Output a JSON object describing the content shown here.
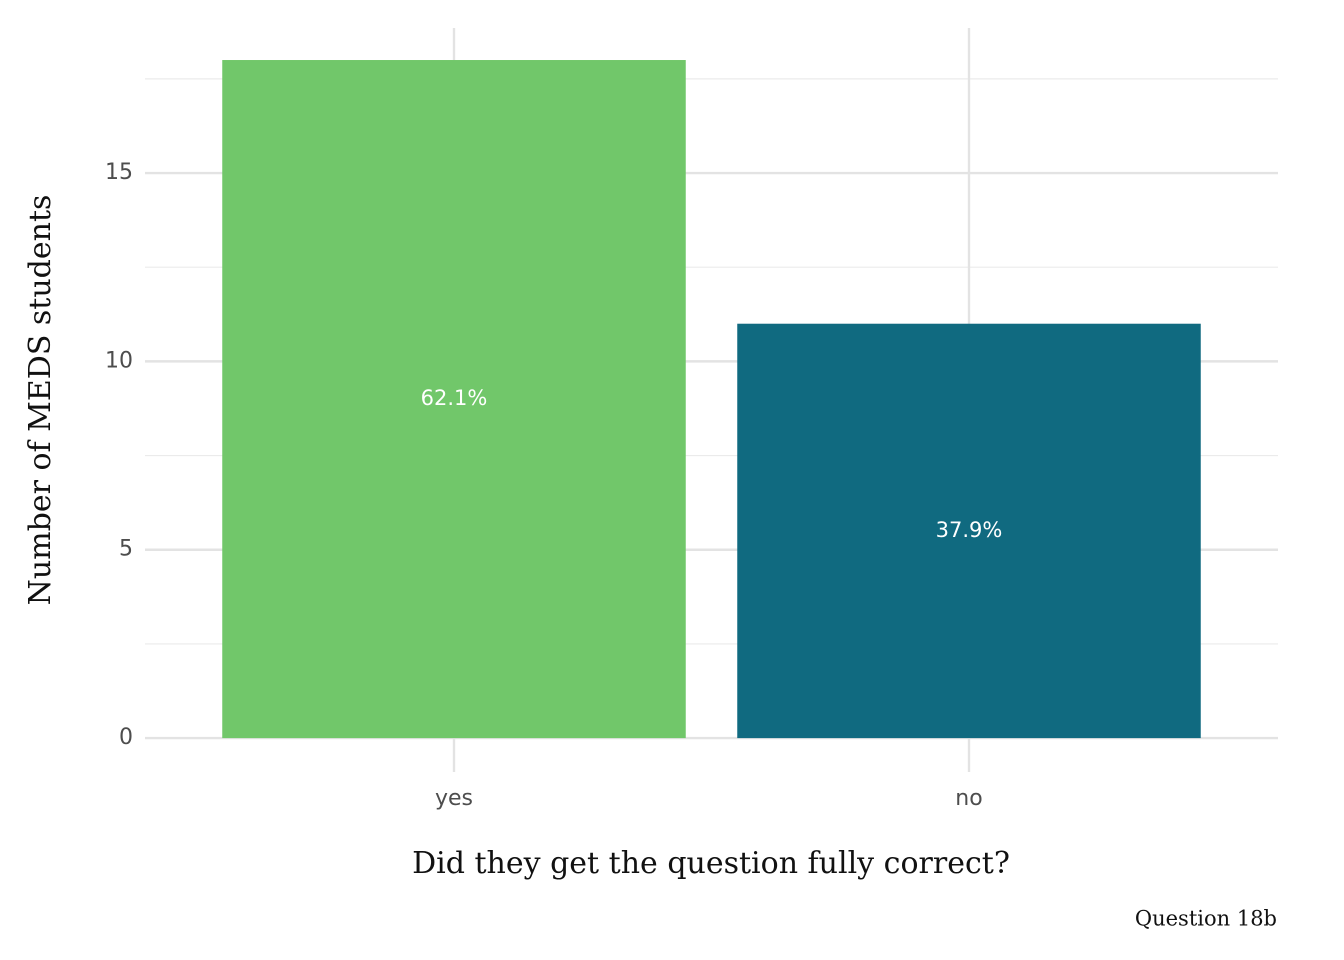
{
  "chart_data": {
    "type": "bar",
    "x_label": "Did they get the question fully correct?",
    "y_label": "Number of MEDS students",
    "caption": "Question 18b",
    "categories": [
      "yes",
      "no"
    ],
    "values": [
      18,
      11
    ],
    "colors": [
      "#71c76a",
      "#106a80"
    ],
    "annotations": [
      "62.1%",
      "37.9%"
    ],
    "ylim": [
      -0.9,
      18.85
    ],
    "yticks": [
      0,
      5,
      10,
      15
    ],
    "minor_yticks": [
      2.5,
      7.5,
      12.5,
      17.5
    ],
    "grid": true
  }
}
